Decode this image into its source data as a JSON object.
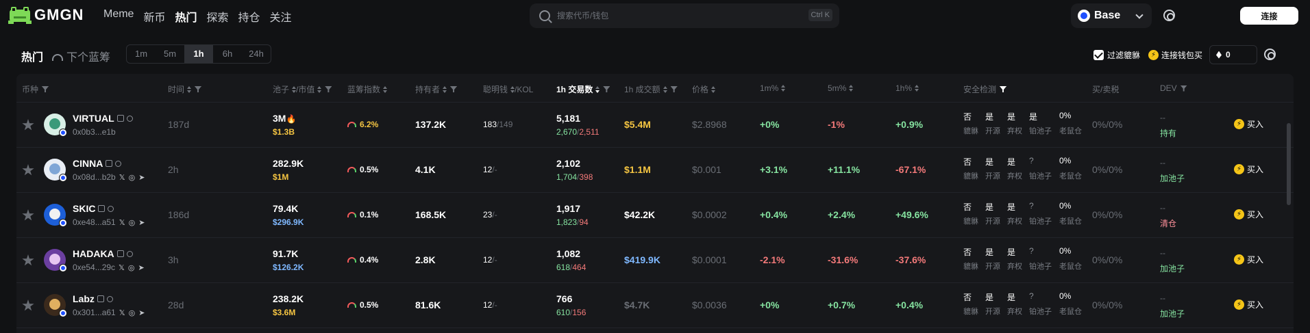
{
  "brand": {
    "name": "GMGN"
  },
  "nav": [
    "Meme",
    "新币",
    "热门",
    "探索",
    "持仓",
    "关注"
  ],
  "search": {
    "placeholder": "搜索代币/钱包",
    "shortcut": "Ctrl K"
  },
  "chain": {
    "label": "Base"
  },
  "connect_label": "连接",
  "subbar": {
    "title": "热门",
    "bluechip_label": "下个蓝筹",
    "timeframes": [
      "1m",
      "5m",
      "1h",
      "6h",
      "24h"
    ],
    "active_timeframe": "1h",
    "filter_label": "过滤貔貅",
    "wallet_buy_label": "连接钱包买",
    "amount_value": "0"
  },
  "columns": {
    "coin": "币种",
    "time": "时间",
    "pool": "池子",
    "mcap": "/市值",
    "bluechip": "蓝筹指数",
    "holders": "持有者",
    "smart": "聪明钱",
    "kol": "/KOL",
    "txns": "1h 交易数",
    "volume": "1h 成交额",
    "price": "价格",
    "m1": "1m%",
    "m5": "5m%",
    "h1": "1h%",
    "security": "安全检测",
    "tax": "买/卖税",
    "dev": "DEV"
  },
  "security_labels": [
    "貔貅",
    "开源",
    "弃权",
    "铂池子",
    "老鼠仓"
  ],
  "buy_label": "买入",
  "rows": [
    {
      "name": "VIRTUAL",
      "addr": "0x0b3...e1b",
      "socials": [],
      "time": "187d",
      "pool": "3M",
      "pool_fire": "🔥",
      "mcap": "$1.3B",
      "mcap_color": "gold",
      "bluechip": "6.2%",
      "bluechip_color": "gold",
      "holders": "137.2K",
      "smart": "183",
      "kol": "149",
      "txns": "5,181",
      "buys": "2,670",
      "sells": "2,511",
      "volume": "$5.4M",
      "volume_color": "gold",
      "price": "$2.8968",
      "m1": "+0%",
      "m1_color": "green",
      "m5": "-1%",
      "m5_color": "red",
      "h1": "+0.9%",
      "h1_color": "green",
      "sec": [
        "否",
        "是",
        "是",
        "是",
        "0%"
      ],
      "tax": "0%/0%",
      "dev_top": "--",
      "dev": "持有",
      "dev_color": "green",
      "avatar_color": "#d8efe6",
      "avatar_inner": "#3a9a7a"
    },
    {
      "name": "CINNA",
      "addr": "0x08d...b2b",
      "socials": [
        "𝕏",
        "◎",
        "➤"
      ],
      "time": "2h",
      "pool": "282.9K",
      "pool_fire": "",
      "mcap": "$1M",
      "mcap_color": "gold",
      "bluechip": "0.5%",
      "bluechip_color": "white",
      "holders": "4.1K",
      "smart": "12",
      "kol": "-",
      "txns": "2,102",
      "buys": "1,704",
      "sells": "398",
      "volume": "$1.1M",
      "volume_color": "gold",
      "price": "$0.001",
      "m1": "+3.1%",
      "m1_color": "green",
      "m5": "+11.1%",
      "m5_color": "green",
      "h1": "-67.1%",
      "h1_color": "red",
      "sec": [
        "否",
        "是",
        "是",
        "?",
        "0%"
      ],
      "tax": "0%/0%",
      "dev_top": "--",
      "dev": "加池子",
      "dev_color": "green",
      "avatar_color": "#e9eef5",
      "avatar_inner": "#7fa6d6"
    },
    {
      "name": "SKIC",
      "addr": "0xe48...a51",
      "socials": [
        "𝕏",
        "◎",
        "➤"
      ],
      "time": "186d",
      "pool": "79.4K",
      "pool_fire": "",
      "mcap": "$296.9K",
      "mcap_color": "blue",
      "bluechip": "0.1%",
      "bluechip_color": "white",
      "holders": "168.5K",
      "smart": "23",
      "kol": "-",
      "txns": "1,917",
      "buys": "1,823",
      "sells": "94",
      "volume": "$42.2K",
      "volume_color": "white",
      "price": "$0.0002",
      "m1": "+0.4%",
      "m1_color": "green",
      "m5": "+2.4%",
      "m5_color": "green",
      "h1": "+49.6%",
      "h1_color": "green",
      "sec": [
        "否",
        "是",
        "是",
        "?",
        "0%"
      ],
      "tax": "0%/0%",
      "dev_top": "--",
      "dev": "清仓",
      "dev_color": "pink",
      "avatar_color": "#1d5fd8",
      "avatar_inner": "#f1f1f1"
    },
    {
      "name": "HADAKA",
      "addr": "0xe54...29c",
      "socials": [
        "𝕏",
        "◎",
        "➤"
      ],
      "time": "3h",
      "pool": "91.7K",
      "pool_fire": "",
      "mcap": "$126.2K",
      "mcap_color": "blue",
      "bluechip": "0.4%",
      "bluechip_color": "white",
      "holders": "2.8K",
      "smart": "12",
      "kol": "-",
      "txns": "1,082",
      "buys": "618",
      "sells": "464",
      "volume": "$419.9K",
      "volume_color": "blue",
      "price": "$0.0001",
      "m1": "-2.1%",
      "m1_color": "red",
      "m5": "-31.6%",
      "m5_color": "red",
      "h1": "-37.6%",
      "h1_color": "red",
      "sec": [
        "否",
        "是",
        "是",
        "?",
        "0%"
      ],
      "tax": "0%/0%",
      "dev_top": "--",
      "dev": "加池子",
      "dev_color": "green",
      "avatar_color": "#6b3fa0",
      "avatar_inner": "#e7c7f2"
    },
    {
      "name": "Labz",
      "addr": "0x301...a61",
      "socials": [
        "𝕏",
        "◎",
        "➤"
      ],
      "time": "28d",
      "pool": "238.2K",
      "pool_fire": "",
      "mcap": "$3.6M",
      "mcap_color": "gold",
      "bluechip": "0.5%",
      "bluechip_color": "white",
      "holders": "81.6K",
      "smart": "12",
      "kol": "-",
      "txns": "766",
      "buys": "610",
      "sells": "156",
      "volume": "$4.7K",
      "volume_color": "muted",
      "price": "$0.0036",
      "m1": "+0%",
      "m1_color": "green",
      "m5": "+0.7%",
      "m5_color": "green",
      "h1": "+0.4%",
      "h1_color": "green",
      "sec": [
        "否",
        "是",
        "是",
        "?",
        "0%"
      ],
      "tax": "0%/0%",
      "dev_top": "--",
      "dev": "加池子",
      "dev_color": "green",
      "avatar_color": "#3b2a1c",
      "avatar_inner": "#e0b060"
    }
  ]
}
